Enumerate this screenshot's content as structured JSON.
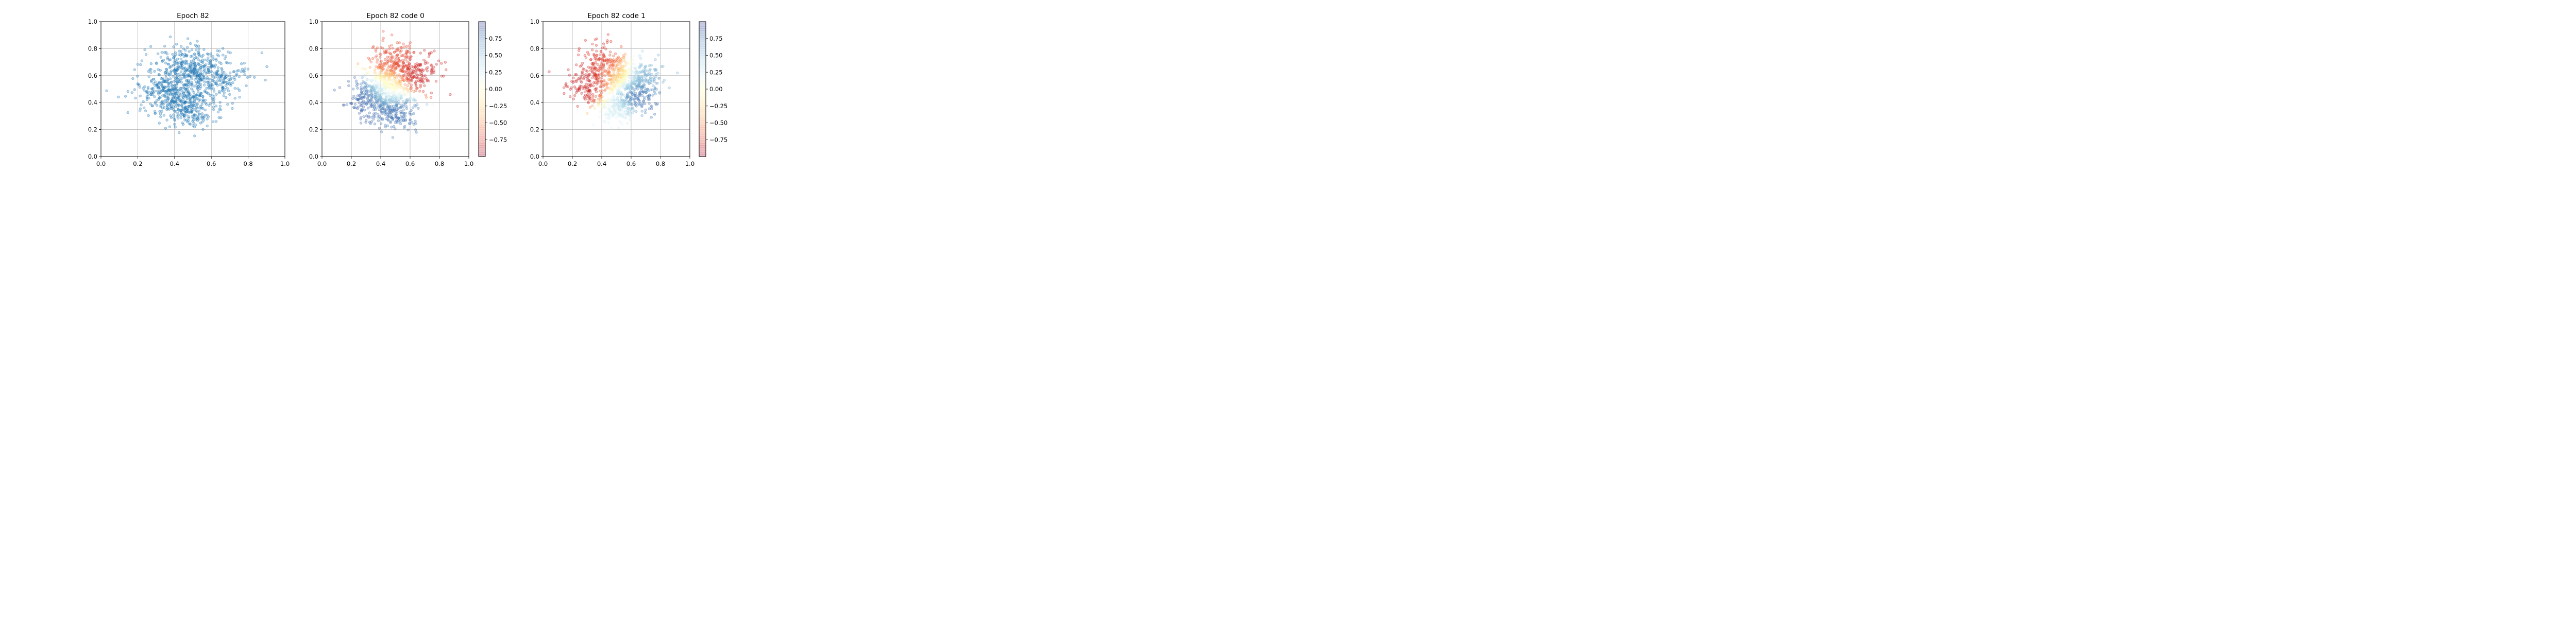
{
  "chart_data": [
    {
      "type": "scatter",
      "title": "Epoch 82",
      "xlim": [
        0.0,
        1.0
      ],
      "ylim": [
        0.0,
        1.0
      ],
      "xticks": [
        "0.0",
        "0.2",
        "0.4",
        "0.6",
        "0.8",
        "1.0"
      ],
      "yticks": [
        "0.0",
        "0.2",
        "0.4",
        "0.6",
        "0.8",
        "1.0"
      ],
      "grid": true,
      "color_mode": "single",
      "color": "#1f77b4",
      "point_count": 1000,
      "clusters": [
        {
          "cx": 0.35,
          "cy": 0.48,
          "spread": 0.09,
          "value": 0.0
        },
        {
          "cx": 0.62,
          "cy": 0.58,
          "spread": 0.09,
          "value": 0.0
        },
        {
          "cx": 0.47,
          "cy": 0.36,
          "spread": 0.07,
          "value": 0.0
        },
        {
          "cx": 0.45,
          "cy": 0.66,
          "spread": 0.08,
          "value": 0.0
        }
      ]
    },
    {
      "type": "scatter",
      "title": "Epoch 82 code 0",
      "xlim": [
        0.0,
        1.0
      ],
      "ylim": [
        0.0,
        1.0
      ],
      "xticks": [
        "0.0",
        "0.2",
        "0.4",
        "0.6",
        "0.8",
        "1.0"
      ],
      "yticks": [
        "0.0",
        "0.2",
        "0.4",
        "0.6",
        "0.8",
        "1.0"
      ],
      "grid": true,
      "color_mode": "colormap",
      "colormap": "RdYlBu",
      "clim": [
        -1.0,
        1.0
      ],
      "colorbar_ticks": [
        "0.75",
        "0.50",
        "0.25",
        "0.00",
        "−0.25",
        "−0.50",
        "−0.75"
      ],
      "colorbar_tick_values": [
        0.75,
        0.5,
        0.25,
        0.0,
        -0.25,
        -0.5,
        -0.75
      ],
      "point_count": 1000,
      "clusters": [
        {
          "cx": 0.32,
          "cy": 0.43,
          "spread": 0.08,
          "value": 0.85
        },
        {
          "cx": 0.5,
          "cy": 0.33,
          "spread": 0.07,
          "value": 0.8
        },
        {
          "cx": 0.62,
          "cy": 0.62,
          "spread": 0.09,
          "value": -0.85
        },
        {
          "cx": 0.48,
          "cy": 0.7,
          "spread": 0.08,
          "value": -0.7
        },
        {
          "cx": 0.45,
          "cy": 0.52,
          "spread": 0.07,
          "value": 0.0
        }
      ]
    },
    {
      "type": "scatter",
      "title": "Epoch 82 code 1",
      "xlim": [
        0.0,
        1.0
      ],
      "ylim": [
        0.0,
        1.0
      ],
      "xticks": [
        "0.0",
        "0.2",
        "0.4",
        "0.6",
        "0.8",
        "1.0"
      ],
      "yticks": [
        "0.0",
        "0.2",
        "0.4",
        "0.6",
        "0.8",
        "1.0"
      ],
      "grid": true,
      "color_mode": "colormap",
      "colormap": "RdYlBu",
      "clim": [
        -1.0,
        1.0
      ],
      "colorbar_ticks": [
        "0.75",
        "0.50",
        "0.25",
        "0.00",
        "−0.25",
        "−0.50",
        "−0.75"
      ],
      "colorbar_tick_values": [
        0.75,
        0.5,
        0.25,
        0.0,
        -0.25,
        -0.5,
        -0.75
      ],
      "point_count": 1000,
      "clusters": [
        {
          "cx": 0.32,
          "cy": 0.52,
          "spread": 0.08,
          "value": -0.85
        },
        {
          "cx": 0.42,
          "cy": 0.68,
          "spread": 0.08,
          "value": -0.8
        },
        {
          "cx": 0.62,
          "cy": 0.45,
          "spread": 0.08,
          "value": 0.85
        },
        {
          "cx": 0.68,
          "cy": 0.58,
          "spread": 0.07,
          "value": 0.6
        },
        {
          "cx": 0.5,
          "cy": 0.35,
          "spread": 0.06,
          "value": 0.2
        },
        {
          "cx": 0.52,
          "cy": 0.6,
          "spread": 0.07,
          "value": -0.2
        }
      ]
    }
  ]
}
